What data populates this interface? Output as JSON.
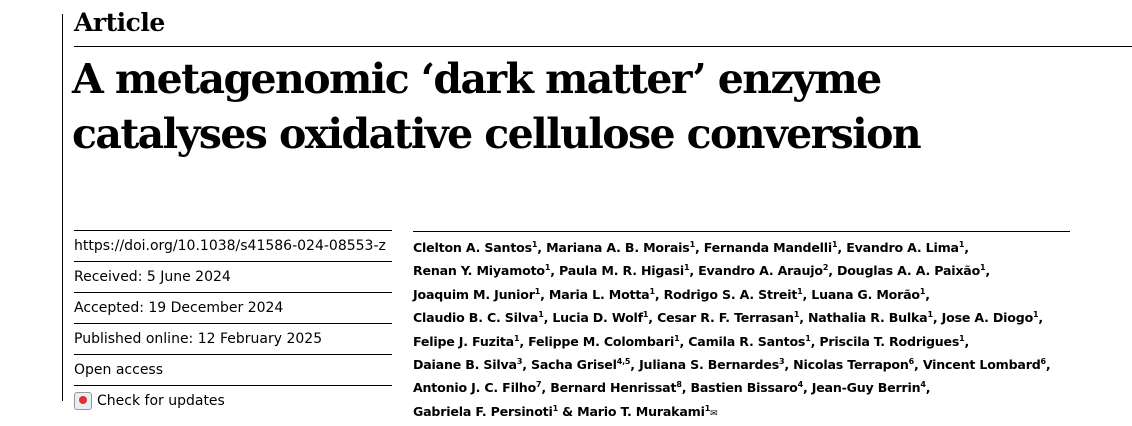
{
  "header": {
    "section": "Article"
  },
  "title": [
    "A metagenomic ‘dark matter’ enzyme",
    "catalyses oxidative cellulose conversion"
  ],
  "meta": {
    "doi": "https://doi.org/10.1038/s41586-024-08553-z",
    "received": "Received: 5 June 2024",
    "accepted": "Accepted: 19 December 2024",
    "published": "Published online: 12 February 2025",
    "access": "Open access",
    "check_updates": "Check for updates"
  },
  "authors": [
    [
      {
        "n": "Clelton A. Santos",
        "s": "1"
      },
      {
        "n": "Mariana A. B. Morais",
        "s": "1"
      },
      {
        "n": "Fernanda Mandelli",
        "s": "1"
      },
      {
        "n": "Evandro A. Lima",
        "s": "1"
      }
    ],
    [
      {
        "n": "Renan Y. Miyamoto",
        "s": "1"
      },
      {
        "n": "Paula M. R. Higasi",
        "s": "1"
      },
      {
        "n": "Evandro A. Araujo",
        "s": "2"
      },
      {
        "n": "Douglas A. A. Paixão",
        "s": "1"
      }
    ],
    [
      {
        "n": "Joaquim M. Junior",
        "s": "1"
      },
      {
        "n": "Maria L. Motta",
        "s": "1"
      },
      {
        "n": "Rodrigo S. A. Streit",
        "s": "1"
      },
      {
        "n": "Luana G. Morão",
        "s": "1"
      }
    ],
    [
      {
        "n": "Claudio B. C. Silva",
        "s": "1"
      },
      {
        "n": "Lucia D. Wolf",
        "s": "1"
      },
      {
        "n": "Cesar R. F. Terrasan",
        "s": "1"
      },
      {
        "n": "Nathalia R. Bulka",
        "s": "1"
      },
      {
        "n": "Jose A. Diogo",
        "s": "1"
      }
    ],
    [
      {
        "n": "Felipe J. Fuzita",
        "s": "1"
      },
      {
        "n": "Felippe M. Colombari",
        "s": "1"
      },
      {
        "n": "Camila R. Santos",
        "s": "1"
      },
      {
        "n": "Priscila T. Rodrigues",
        "s": "1"
      }
    ],
    [
      {
        "n": "Daiane B. Silva",
        "s": "3"
      },
      {
        "n": "Sacha Grisel",
        "s": "4,5"
      },
      {
        "n": "Juliana S. Bernardes",
        "s": "3"
      },
      {
        "n": "Nicolas Terrapon",
        "s": "6"
      },
      {
        "n": "Vincent Lombard",
        "s": "6"
      }
    ],
    [
      {
        "n": "Antonio J. C. Filho",
        "s": "7"
      },
      {
        "n": "Bernard Henrissat",
        "s": "8"
      },
      {
        "n": "Bastien Bissaro",
        "s": "4"
      },
      {
        "n": "Jean-Guy Berrin",
        "s": "4"
      }
    ],
    [
      {
        "n": "Gabriela F. Persinoti",
        "s": "1"
      },
      {
        "n": "Mario T. Murakami",
        "s": "1"
      }
    ]
  ],
  "final_separator": " & ",
  "corresponding_icon": "envelope-icon"
}
